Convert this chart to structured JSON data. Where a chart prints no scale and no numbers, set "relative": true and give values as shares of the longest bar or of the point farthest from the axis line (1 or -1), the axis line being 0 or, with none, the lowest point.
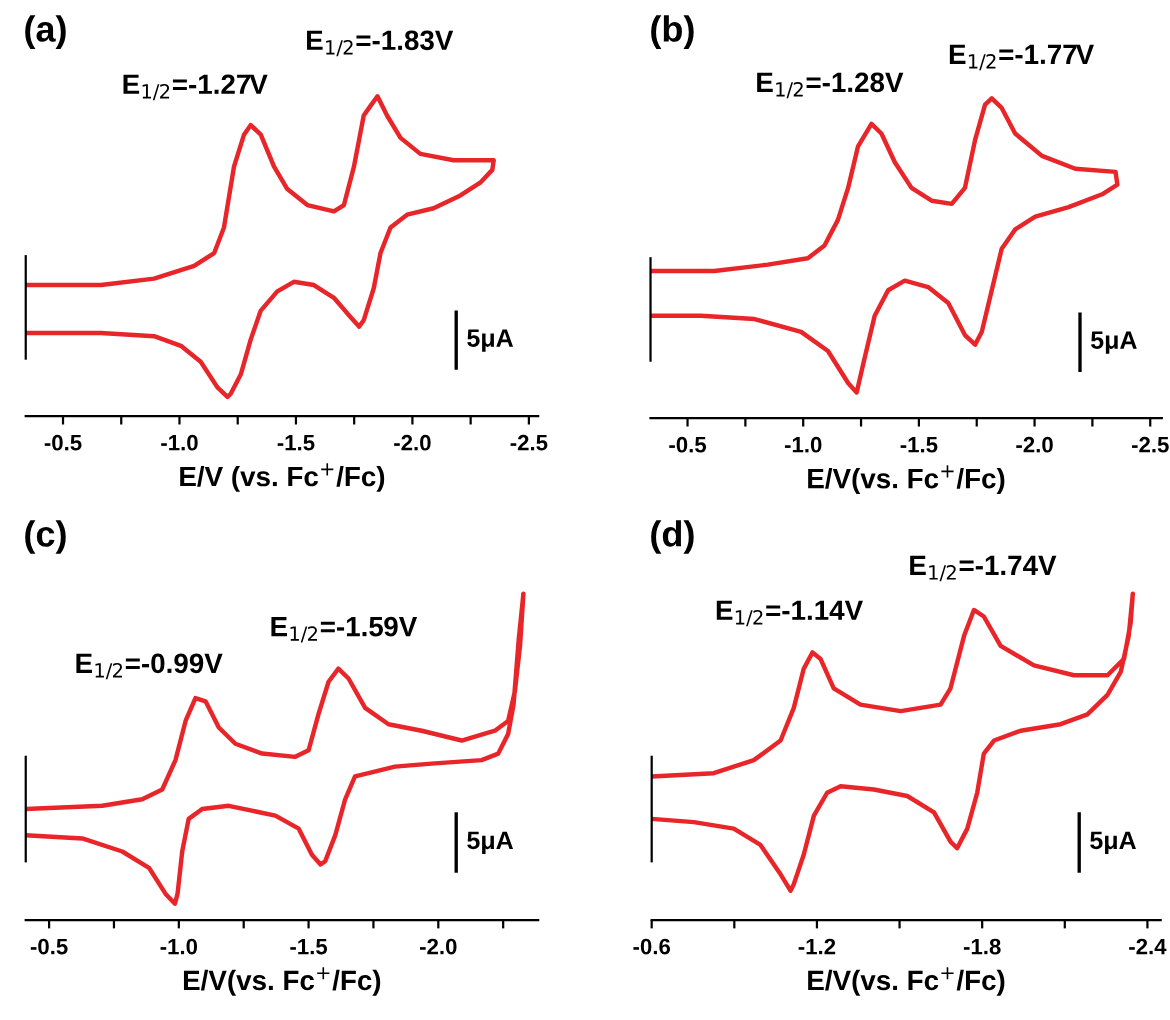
{
  "chart_data": [
    {
      "type": "line",
      "relative": true,
      "title": "(a)",
      "xlabel": "E/V (vs. Fc$^{+}$/Fc)",
      "xlim": [
        -0.34,
        -2.54
      ],
      "xticks": [
        -0.5,
        {
          "value": -0.75,
          "label": null
        },
        {
          "value": -1.0,
          "label": "-1.0"
        },
        {
          "value": -1.25,
          "label": null
        },
        -1.5,
        {
          "value": -1.75,
          "label": null
        },
        {
          "value": -2.0,
          "label": "-2.0"
        },
        {
          "value": -2.25,
          "label": null
        },
        -2.5
      ],
      "annotations": [
        "E$_{1/2}$=-1.27V",
        "E$_{1/2}$=-1.83V",
        "5μA"
      ],
      "series": [
        {
          "color": "#e8262a",
          "x": [
            -0.34,
            -0.663,
            -0.891,
            -1.063,
            -1.149,
            -1.191,
            -1.234,
            -1.277,
            -1.306,
            -1.349,
            -1.406,
            -1.463,
            -1.549,
            -1.663,
            -1.706,
            -1.749,
            -1.791,
            -1.82,
            -1.85,
            -1.891,
            -1.949,
            -2.034,
            -2.177,
            -2.349,
            -2.343,
            -2.291,
            -2.206,
            -2.091,
            -1.977,
            -1.906,
            -1.863,
            -1.834,
            -1.791,
            -1.771,
            -1.734,
            -1.663,
            -1.577,
            -1.491,
            -1.42,
            -1.349,
            -1.306,
            -1.263,
            -1.22,
            -1.206,
            -1.163,
            -1.091,
            -1.006,
            -0.891,
            -0.663,
            -0.34
          ],
          "values": [
            0.41,
            0.41,
            0.43,
            0.47,
            0.51,
            0.59,
            0.78,
            0.88,
            0.91,
            0.88,
            0.78,
            0.71,
            0.66,
            0.64,
            0.66,
            0.78,
            0.94,
            0.97,
            1.0,
            0.94,
            0.87,
            0.82,
            0.8,
            0.8,
            0.77,
            0.73,
            0.69,
            0.65,
            0.63,
            0.59,
            0.51,
            0.4,
            0.3,
            0.28,
            0.31,
            0.37,
            0.41,
            0.42,
            0.39,
            0.33,
            0.24,
            0.13,
            0.07,
            0.06,
            0.09,
            0.17,
            0.22,
            0.25,
            0.26,
            0.26
          ]
        }
      ]
    },
    {
      "type": "line",
      "relative": true,
      "title": "(b)",
      "xlabel": "E/V(vs. Fc$^{+}$/Fc)",
      "xlim": [
        -0.34,
        -2.55
      ],
      "xticks": [
        -0.5,
        {
          "value": -0.75,
          "label": null
        },
        {
          "value": -1.0,
          "label": "-1.0"
        },
        {
          "value": -1.25,
          "label": null
        },
        -1.5,
        {
          "value": -1.75,
          "label": null
        },
        {
          "value": -2.0,
          "label": "-2.0"
        },
        {
          "value": -2.25,
          "label": null
        },
        -2.5
      ],
      "annotations": [
        "E$_{1/2}$=-1.28V",
        "E$_{1/2}$=-1.77V",
        "5μA"
      ],
      "series": [
        {
          "color": "#e8262a",
          "x": [
            -0.34,
            -0.616,
            -0.847,
            -1.02,
            -1.092,
            -1.15,
            -1.194,
            -1.237,
            -1.295,
            -1.338,
            -1.396,
            -1.468,
            -1.555,
            -1.642,
            -1.699,
            -1.743,
            -1.786,
            -1.815,
            -1.858,
            -1.916,
            -2.032,
            -2.176,
            -2.35,
            -2.358,
            -2.292,
            -2.147,
            -2.003,
            -1.916,
            -1.858,
            -1.815,
            -1.772,
            -1.743,
            -1.699,
            -1.627,
            -1.54,
            -1.439,
            -1.367,
            -1.309,
            -1.266,
            -1.231,
            -1.194,
            -1.107,
            -0.991,
            -0.789,
            -0.558,
            -0.34
          ],
          "values": [
            0.46,
            0.46,
            0.48,
            0.5,
            0.54,
            0.62,
            0.72,
            0.85,
            0.92,
            0.89,
            0.8,
            0.72,
            0.68,
            0.67,
            0.72,
            0.87,
            0.98,
            1.0,
            0.97,
            0.89,
            0.82,
            0.78,
            0.77,
            0.73,
            0.7,
            0.66,
            0.63,
            0.59,
            0.53,
            0.4,
            0.27,
            0.23,
            0.26,
            0.36,
            0.41,
            0.43,
            0.4,
            0.32,
            0.19,
            0.08,
            0.11,
            0.21,
            0.27,
            0.31,
            0.32,
            0.32
          ]
        }
      ]
    },
    {
      "type": "line",
      "relative": true,
      "title": "(c)",
      "xlabel": "E/V(vs. Fc$^{+}$/Fc)",
      "xlim": [
        -0.41,
        -2.385
      ],
      "xticks": [
        -0.5,
        {
          "value": -0.75,
          "label": null
        },
        {
          "value": -1.0,
          "label": "-1.0"
        },
        {
          "value": -1.25,
          "label": null
        },
        -1.5,
        {
          "value": -1.75,
          "label": null
        },
        {
          "value": -2.0,
          "label": "-2.0"
        },
        {
          "value": -2.25,
          "label": null
        }
      ],
      "annotations": [
        "E$_{1/2}$=-0.99V",
        "E$_{1/2}$=-1.59V",
        "5μA"
      ],
      "series": [
        {
          "color": "#e8262a",
          "x": [
            -0.41,
            -0.705,
            -0.859,
            -0.936,
            -0.987,
            -1.026,
            -1.064,
            -1.103,
            -1.154,
            -1.218,
            -1.321,
            -1.449,
            -1.5,
            -1.538,
            -1.577,
            -1.615,
            -1.654,
            -1.718,
            -1.808,
            -1.936,
            -2.09,
            -2.218,
            -2.269,
            -2.295,
            -2.315,
            -2.328,
            -2.31,
            -2.29,
            -2.269,
            -2.231,
            -2.167,
            -1.987,
            -1.833,
            -1.731,
            -1.679,
            -1.641,
            -1.603,
            -1.564,
            -1.546,
            -1.513,
            -1.462,
            -1.372,
            -1.192,
            -1.09,
            -1.038,
            -1.013,
            -0.995,
            -0.985,
            -0.949,
            -0.885,
            -0.782,
            -0.628,
            -0.41
          ],
          "values": [
            0.34,
            0.35,
            0.37,
            0.4,
            0.49,
            0.61,
            0.68,
            0.67,
            0.59,
            0.54,
            0.51,
            0.5,
            0.52,
            0.63,
            0.73,
            0.77,
            0.74,
            0.65,
            0.6,
            0.58,
            0.55,
            0.58,
            0.61,
            0.7,
            0.84,
            1.0,
            0.86,
            0.66,
            0.57,
            0.51,
            0.49,
            0.48,
            0.47,
            0.45,
            0.44,
            0.37,
            0.26,
            0.18,
            0.17,
            0.2,
            0.28,
            0.32,
            0.35,
            0.34,
            0.31,
            0.21,
            0.08,
            0.05,
            0.08,
            0.16,
            0.21,
            0.25,
            0.26
          ]
        }
      ]
    },
    {
      "type": "line",
      "relative": true,
      "title": "(d)",
      "xlabel": "E/V(vs. Fc$^{+}$/Fc)",
      "xlim": [
        -0.6,
        -2.448
      ],
      "xticks": [
        -0.6,
        {
          "value": -0.9,
          "label": null
        },
        -1.2,
        {
          "value": -1.5,
          "label": null
        },
        -1.8,
        {
          "value": -2.1,
          "label": null
        },
        -2.4
      ],
      "annotations": [
        "E$_{1/2}$=-1.14V",
        "E$_{1/2}$=-1.74V",
        "5μA"
      ],
      "series": [
        {
          "color": "#e8262a",
          "x": [
            -0.6,
            -0.825,
            -0.971,
            -1.068,
            -1.116,
            -1.152,
            -1.184,
            -1.213,
            -1.261,
            -1.358,
            -1.504,
            -1.649,
            -1.685,
            -1.734,
            -1.77,
            -1.806,
            -1.867,
            -1.988,
            -2.133,
            -2.255,
            -2.315,
            -2.339,
            -2.347,
            -2.332,
            -2.303,
            -2.255,
            -2.182,
            -2.085,
            -1.94,
            -1.843,
            -1.806,
            -1.782,
            -1.746,
            -1.709,
            -1.685,
            -1.625,
            -1.528,
            -1.407,
            -1.286,
            -1.237,
            -1.189,
            -1.152,
            -1.116,
            -1.104,
            -1.068,
            -0.995,
            -0.898,
            -0.753,
            -0.6
          ],
          "values": [
            0.44,
            0.45,
            0.49,
            0.55,
            0.65,
            0.77,
            0.82,
            0.8,
            0.71,
            0.66,
            0.64,
            0.66,
            0.71,
            0.87,
            0.95,
            0.93,
            0.84,
            0.78,
            0.75,
            0.75,
            0.8,
            0.91,
            1.0,
            0.87,
            0.76,
            0.69,
            0.63,
            0.6,
            0.58,
            0.55,
            0.51,
            0.39,
            0.28,
            0.22,
            0.24,
            0.33,
            0.38,
            0.4,
            0.41,
            0.39,
            0.32,
            0.2,
            0.11,
            0.09,
            0.14,
            0.23,
            0.28,
            0.3,
            0.31
          ]
        }
      ]
    }
  ]
}
